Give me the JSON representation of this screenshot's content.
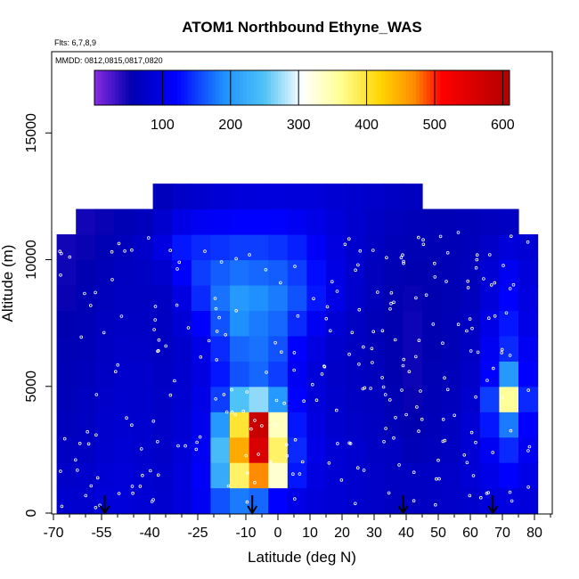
{
  "chart_data": {
    "type": "heatmap",
    "title": "ATOM1 Northbound Ethyne_WAS",
    "annotations": [
      "Flts: 6,7,8,9",
      "MMDD: 0812,0815,0817,0820"
    ],
    "xlabel": "Latitude (deg N)",
    "ylabel": "Altitude (m)",
    "xlim": [
      -70,
      85
    ],
    "ylim": [
      0,
      17500
    ],
    "x_tick_labels": [
      "-70",
      "-55",
      "-40",
      "-25",
      "-10",
      "0",
      "10",
      "20",
      "30",
      "40",
      "50",
      "60",
      "70",
      "80"
    ],
    "x_ticks": [
      -70,
      -55,
      -40,
      -25,
      -10,
      0,
      10,
      20,
      30,
      40,
      50,
      60,
      70,
      80
    ],
    "y_tick_labels": [
      "0",
      "5000",
      "10000",
      "15000"
    ],
    "y_ticks": [
      0,
      5000,
      10000,
      15000
    ],
    "colorbar": {
      "min": 0,
      "max": 610,
      "tick_labels": [
        "100",
        "200",
        "300",
        "400",
        "500",
        "600"
      ],
      "ticks": [
        100,
        200,
        300,
        400,
        500,
        600
      ],
      "colors": [
        "#8a2be2",
        "#0000b0",
        "#0000ff",
        "#1e90ff",
        "#4fc3f7",
        "#ffffff",
        "#ffff99",
        "#ffd700",
        "#ff8c00",
        "#ff0000",
        "#b00000"
      ]
    },
    "grid": false,
    "marker_latitudes": [
      -54,
      -8,
      39,
      67
    ],
    "lat_bands": [
      -66,
      -60,
      -54,
      -48,
      -42,
      -36,
      -30,
      -24,
      -18,
      -12,
      -6,
      0,
      6,
      12,
      18,
      24,
      30,
      36,
      42,
      48,
      54,
      60,
      66,
      72,
      78
    ],
    "altitude_levels": [
      500,
      1500,
      2500,
      3500,
      4500,
      5500,
      6500,
      7500,
      8500,
      9500,
      10500,
      11500,
      12500
    ],
    "values": [
      [
        80,
        80,
        90,
        90,
        85,
        80,
        90,
        110,
        160,
        180,
        170,
        120,
        100,
        90,
        85,
        80,
        75,
        70,
        70,
        72,
        75,
        80,
        90,
        95,
        90
      ],
      [
        75,
        78,
        85,
        88,
        82,
        78,
        90,
        115,
        220,
        380,
        470,
        330,
        130,
        95,
        85,
        80,
        75,
        70,
        70,
        72,
        75,
        85,
        100,
        120,
        100
      ],
      [
        70,
        72,
        80,
        85,
        80,
        75,
        88,
        110,
        240,
        450,
        560,
        380,
        140,
        100,
        85,
        80,
        72,
        70,
        60,
        65,
        70,
        85,
        110,
        140,
        110
      ],
      [
        65,
        70,
        78,
        82,
        80,
        75,
        85,
        105,
        200,
        400,
        580,
        340,
        130,
        95,
        80,
        75,
        70,
        60,
        55,
        62,
        68,
        85,
        130,
        180,
        120
      ],
      [
        62,
        68,
        75,
        80,
        78,
        74,
        82,
        100,
        150,
        250,
        270,
        200,
        120,
        90,
        78,
        72,
        68,
        58,
        52,
        60,
        65,
        80,
        150,
        360,
        140
      ],
      [
        60,
        65,
        72,
        78,
        76,
        72,
        80,
        95,
        130,
        160,
        170,
        150,
        110,
        88,
        75,
        70,
        65,
        56,
        50,
        58,
        62,
        75,
        120,
        200,
        120
      ],
      [
        58,
        62,
        70,
        75,
        74,
        70,
        78,
        100,
        140,
        170,
        175,
        160,
        120,
        95,
        78,
        70,
        62,
        55,
        50,
        56,
        60,
        72,
        110,
        140,
        110
      ],
      [
        55,
        60,
        68,
        72,
        72,
        70,
        85,
        120,
        160,
        190,
        180,
        170,
        140,
        110,
        85,
        72,
        62,
        55,
        50,
        55,
        60,
        70,
        100,
        130,
        100
      ],
      [
        52,
        58,
        65,
        70,
        70,
        72,
        95,
        140,
        175,
        200,
        190,
        180,
        160,
        130,
        100,
        78,
        65,
        56,
        52,
        55,
        58,
        66,
        90,
        120,
        95
      ],
      [
        50,
        55,
        62,
        68,
        72,
        80,
        120,
        150,
        165,
        175,
        170,
        165,
        150,
        125,
        98,
        80,
        66,
        58,
        55,
        57,
        60,
        66,
        85,
        110,
        90
      ],
      [
        48,
        52,
        58,
        65,
        75,
        95,
        130,
        140,
        145,
        150,
        150,
        145,
        135,
        115,
        95,
        80,
        70,
        62,
        58,
        58,
        60,
        64,
        75,
        90,
        85
      ],
      [
        45,
        48,
        52,
        58,
        65,
        80,
        100,
        110,
        115,
        120,
        120,
        118,
        110,
        100,
        90,
        80,
        72,
        66,
        62,
        60,
        60,
        62,
        66,
        70,
        70
      ],
      [
        40,
        42,
        45,
        48,
        55,
        65,
        75,
        80,
        85,
        90,
        92,
        92,
        90,
        88,
        84,
        80,
        76,
        72,
        68,
        66,
        64,
        62,
        60,
        60,
        60
      ]
    ]
  }
}
